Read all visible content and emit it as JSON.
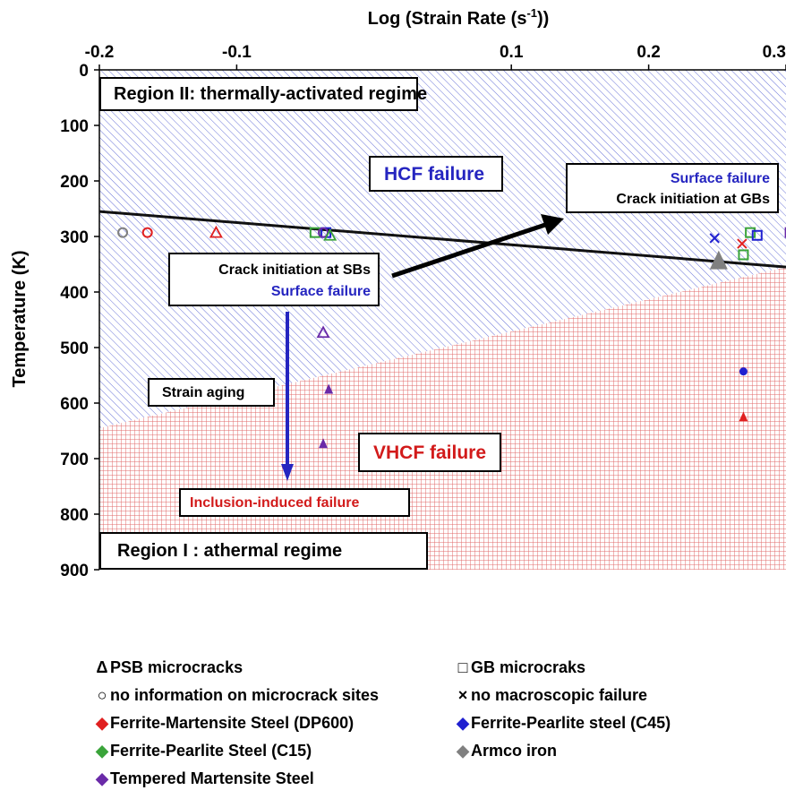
{
  "chart_data": {
    "type": "scatter",
    "xlabel": "Log (Strain Rate (s",
    "xlabel_sup": "-1",
    "xlabel_tail": "))",
    "ylabel": "Temperature (K)",
    "xlim": [
      -0.2,
      0.3
    ],
    "ylim": [
      0,
      900
    ],
    "y_inverted": true,
    "x_axis_position": "top",
    "x_ticks": [
      "-0.2",
      "-0.1",
      "0.1",
      "0.2",
      "0.3"
    ],
    "x_tick_values": [
      -0.2,
      -0.1,
      0.1,
      0.2,
      0.3
    ],
    "y_ticks": [
      "0",
      "100",
      "200",
      "300",
      "400",
      "500",
      "600",
      "700",
      "800",
      "900"
    ],
    "y_tick_values": [
      0,
      100,
      200,
      300,
      400,
      500,
      600,
      700,
      800,
      900
    ],
    "regions": {
      "upper": "Region II: thermally-activated regime",
      "lower": "Region I : athermal regime",
      "boundary": [
        [
          -0.2,
          645
        ],
        [
          0.3,
          355
        ]
      ],
      "upper_color": "#2a2ad0",
      "lower_color": "#d21a1a"
    },
    "trend_line": [
      [
        -0.2,
        255
      ],
      [
        0.3,
        355
      ]
    ],
    "annotations": {
      "hcf": "HCF failure",
      "vhcf": "VHCF failure",
      "surface_right_1": "Surface failure",
      "surface_right_2": "Crack initiation at GBs",
      "sb_1": "Crack initiation at SBs",
      "sb_2": "Surface failure",
      "strain_aging": "Strain aging",
      "inclusion": "Inclusion-induced failure"
    },
    "points": [
      {
        "x": -0.183,
        "y": 293,
        "marker": "circle",
        "material": "Armco iron"
      },
      {
        "x": -0.165,
        "y": 293,
        "marker": "circle",
        "material": "Ferrite-Martensite Steel (DP600)"
      },
      {
        "x": -0.115,
        "y": 293,
        "marker": "triangle-open",
        "material": "Ferrite-Martensite Steel (DP600)"
      },
      {
        "x": -0.043,
        "y": 293,
        "marker": "square",
        "material": "Ferrite-Pearlite Steel (C15)"
      },
      {
        "x": -0.035,
        "y": 293,
        "marker": "square",
        "material": "Ferrite-Pearlite steel (C45)"
      },
      {
        "x": -0.037,
        "y": 293,
        "marker": "circle",
        "material": "Tempered Martensite Steel"
      },
      {
        "x": -0.032,
        "y": 298,
        "marker": "triangle-open",
        "material": "Ferrite-Pearlite Steel (C15)"
      },
      {
        "x": -0.037,
        "y": 473,
        "marker": "triangle-open",
        "material": "Tempered Martensite Steel"
      },
      {
        "x": -0.033,
        "y": 575,
        "marker": "triangle-filled",
        "material": "Tempered Martensite Steel"
      },
      {
        "x": -0.037,
        "y": 673,
        "marker": "triangle-filled",
        "material": "Tempered Martensite Steel"
      },
      {
        "x": 0.251,
        "y": 343,
        "marker": "triangle-filled",
        "material": "Armco iron"
      },
      {
        "x": 0.248,
        "y": 303,
        "marker": "cross",
        "material": "Ferrite-Pearlite steel (C45)"
      },
      {
        "x": 0.268,
        "y": 313,
        "marker": "cross",
        "material": "Ferrite-Martensite Steel (DP600)"
      },
      {
        "x": 0.274,
        "y": 293,
        "marker": "square",
        "material": "Ferrite-Pearlite Steel (C15)"
      },
      {
        "x": 0.279,
        "y": 298,
        "marker": "square",
        "material": "Ferrite-Pearlite steel (C45)"
      },
      {
        "x": 0.269,
        "y": 333,
        "marker": "square",
        "material": "Ferrite-Pearlite Steel (C15)"
      },
      {
        "x": 0.303,
        "y": 293,
        "marker": "square",
        "material": "Tempered Martensite Steel"
      },
      {
        "x": 0.269,
        "y": 543,
        "marker": "circle-filled",
        "material": "Ferrite-Pearlite steel (C45)"
      },
      {
        "x": 0.269,
        "y": 625,
        "marker": "triangle-filled",
        "material": "Ferrite-Martensite Steel (DP600)"
      }
    ],
    "legend": {
      "placement": "bottom",
      "symbols": [
        {
          "symbol": "Δ",
          "label": "PSB microcracks",
          "color": "#000000"
        },
        {
          "symbol": "□",
          "label": "GB microcraks",
          "color": "#000000"
        },
        {
          "symbol": "○",
          "label": "no information on microcrack sites",
          "color": "#000000"
        },
        {
          "symbol": "×",
          "label": "no macroscopic failure",
          "color": "#000000"
        },
        {
          "symbol": "◆",
          "label": "Ferrite-Martensite Steel (DP600)",
          "color": "#e02020"
        },
        {
          "symbol": "◆",
          "label": "Ferrite-Pearlite steel (C45)",
          "color": "#2020d0"
        },
        {
          "symbol": "◆",
          "label": "Ferrite-Pearlite Steel (C15)",
          "color": "#3aa43a"
        },
        {
          "symbol": "◆",
          "label": "Armco iron",
          "color": "#808080"
        },
        {
          "symbol": "◆",
          "label": "Tempered Martensite Steel",
          "color": "#6a2aa8"
        }
      ]
    },
    "material_colors": {
      "Ferrite-Martensite Steel (DP600)": "#e02020",
      "Ferrite-Pearlite steel (C45)": "#2020d0",
      "Ferrite-Pearlite Steel (C15)": "#3aa43a",
      "Armco iron": "#808080",
      "Tempered Martensite Steel": "#6a2aa8"
    }
  }
}
